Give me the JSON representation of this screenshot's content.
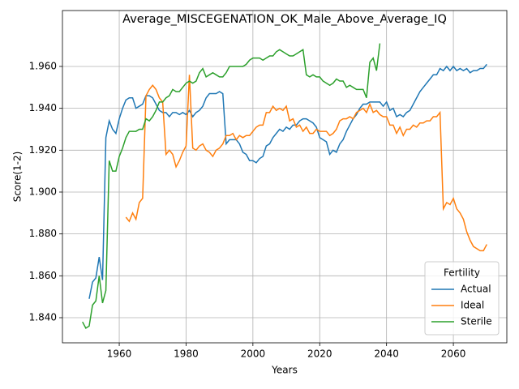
{
  "chart_data": {
    "type": "line",
    "title": "Average_MISCEGENATION_OK_Male_Above_Average_IQ",
    "x_label": "Years",
    "y_label": "Score(1-2)",
    "legend_title": "Fertility",
    "legend_loc": "lower right",
    "grid": true,
    "xlim": [
      1943,
      2076
    ],
    "ylim": [
      1.828,
      1.9867
    ],
    "xticks": [
      1960,
      1980,
      2000,
      2020,
      2040,
      2060
    ],
    "yticks": [
      {
        "value": 1.84,
        "label": "1.840"
      },
      {
        "value": 1.86,
        "label": "1.860"
      },
      {
        "value": 1.88,
        "label": "1.880"
      },
      {
        "value": 1.9,
        "label": "1.900"
      },
      {
        "value": 1.92,
        "label": "1.920"
      },
      {
        "value": 1.94,
        "label": "1.940"
      },
      {
        "value": 1.96,
        "label": "1.960"
      }
    ],
    "x": [
      1949,
      1950,
      1951,
      1952,
      1953,
      1954,
      1955,
      1956,
      1957,
      1958,
      1959,
      1960,
      1961,
      1962,
      1963,
      1964,
      1965,
      1966,
      1967,
      1968,
      1969,
      1970,
      1971,
      1972,
      1973,
      1974,
      1975,
      1976,
      1977,
      1978,
      1979,
      1980,
      1981,
      1982,
      1983,
      1984,
      1985,
      1986,
      1987,
      1988,
      1989,
      1990,
      1991,
      1992,
      1993,
      1994,
      1995,
      1996,
      1997,
      1998,
      1999,
      2000,
      2001,
      2002,
      2003,
      2004,
      2005,
      2006,
      2007,
      2008,
      2009,
      2010,
      2011,
      2012,
      2013,
      2014,
      2015,
      2016,
      2017,
      2018,
      2019,
      2020,
      2021,
      2022,
      2023,
      2024,
      2025,
      2026,
      2027,
      2028,
      2029,
      2030,
      2031,
      2032,
      2033,
      2034,
      2035,
      2036,
      2037,
      2038,
      2039,
      2040,
      2041,
      2042,
      2043,
      2044,
      2045,
      2046,
      2047,
      2048,
      2049,
      2050,
      2051,
      2052,
      2053,
      2054,
      2055,
      2056,
      2057,
      2058,
      2059,
      2060,
      2061,
      2062,
      2063,
      2064,
      2065,
      2066,
      2067,
      2068,
      2069,
      2070
    ],
    "series": [
      {
        "name": "Actual",
        "color": "#1f77b4",
        "values": [
          null,
          null,
          1.849,
          1.857,
          1.859,
          1.869,
          1.858,
          1.926,
          1.934,
          1.93,
          1.928,
          1.935,
          1.94,
          1.944,
          1.945,
          1.945,
          1.94,
          1.941,
          1.942,
          1.946,
          1.946,
          1.945,
          1.942,
          1.939,
          1.938,
          1.938,
          1.936,
          1.938,
          1.938,
          1.937,
          1.938,
          1.937,
          1.939,
          1.936,
          1.938,
          1.939,
          1.941,
          1.945,
          1.947,
          1.947,
          1.947,
          1.948,
          1.947,
          1.923,
          1.925,
          1.925,
          1.925,
          1.923,
          1.919,
          1.918,
          1.915,
          1.915,
          1.914,
          1.916,
          1.917,
          1.922,
          1.923,
          1.926,
          1.928,
          1.93,
          1.929,
          1.931,
          1.93,
          1.932,
          1.932,
          1.934,
          1.935,
          1.935,
          1.934,
          1.933,
          1.931,
          1.926,
          1.925,
          1.924,
          1.918,
          1.92,
          1.919,
          1.923,
          1.925,
          1.929,
          1.932,
          1.935,
          1.937,
          1.94,
          1.942,
          1.942,
          1.943,
          1.943,
          1.943,
          1.943,
          1.941,
          1.943,
          1.939,
          1.94,
          1.936,
          1.937,
          1.936,
          1.938,
          1.939,
          1.942,
          1.945,
          1.948,
          1.95,
          1.952,
          1.954,
          1.956,
          1.956,
          1.959,
          1.958,
          1.96,
          1.958,
          1.96,
          1.958,
          1.959,
          1.958,
          1.959,
          1.957,
          1.958,
          1.958,
          1.959,
          1.959,
          1.961
        ]
      },
      {
        "name": "Ideal",
        "color": "#ff7f0e",
        "values": [
          null,
          null,
          null,
          null,
          null,
          null,
          null,
          null,
          null,
          null,
          null,
          null,
          null,
          1.888,
          1.886,
          1.89,
          1.887,
          1.895,
          1.897,
          1.946,
          1.949,
          1.951,
          1.949,
          1.945,
          1.943,
          1.918,
          1.92,
          1.918,
          1.912,
          1.915,
          1.919,
          1.922,
          1.956,
          1.921,
          1.92,
          1.922,
          1.923,
          1.92,
          1.919,
          1.917,
          1.92,
          1.921,
          1.923,
          1.927,
          1.927,
          1.928,
          1.925,
          1.927,
          1.926,
          1.927,
          1.927,
          1.929,
          1.931,
          1.932,
          1.932,
          1.938,
          1.938,
          1.941,
          1.939,
          1.94,
          1.939,
          1.941,
          1.934,
          1.935,
          1.931,
          1.932,
          1.929,
          1.931,
          1.928,
          1.928,
          1.93,
          1.929,
          1.929,
          1.929,
          1.927,
          1.928,
          1.93,
          1.934,
          1.935,
          1.935,
          1.936,
          1.935,
          1.938,
          1.939,
          1.94,
          1.938,
          1.942,
          1.938,
          1.939,
          1.937,
          1.936,
          1.936,
          1.932,
          1.932,
          1.928,
          1.931,
          1.927,
          1.93,
          1.93,
          1.932,
          1.931,
          1.933,
          1.933,
          1.934,
          1.934,
          1.936,
          1.936,
          1.938,
          1.892,
          1.895,
          1.894,
          1.897,
          1.892,
          1.89,
          1.887,
          1.881,
          1.877,
          1.874,
          1.873,
          1.872,
          1.872,
          1.875
        ]
      },
      {
        "name": "Sterile",
        "color": "#2ca02c",
        "values": [
          1.838,
          1.835,
          1.836,
          1.846,
          1.848,
          1.86,
          1.847,
          1.853,
          1.915,
          1.91,
          1.91,
          1.917,
          1.921,
          1.926,
          1.929,
          1.929,
          1.929,
          1.93,
          1.93,
          1.935,
          1.934,
          1.936,
          1.939,
          1.943,
          1.943,
          1.945,
          1.946,
          1.949,
          1.948,
          1.948,
          1.95,
          1.952,
          1.953,
          1.952,
          1.953,
          1.957,
          1.959,
          1.955,
          1.956,
          1.957,
          1.956,
          1.955,
          1.955,
          1.957,
          1.96,
          1.96,
          1.96,
          1.96,
          1.96,
          1.961,
          1.963,
          1.964,
          1.964,
          1.964,
          1.963,
          1.964,
          1.965,
          1.965,
          1.967,
          1.968,
          1.967,
          1.966,
          1.965,
          1.965,
          1.966,
          1.967,
          1.968,
          1.956,
          1.955,
          1.956,
          1.955,
          1.955,
          1.953,
          1.952,
          1.951,
          1.952,
          1.954,
          1.953,
          1.953,
          1.95,
          1.951,
          1.95,
          1.949,
          1.949,
          1.949,
          1.945,
          1.962,
          1.964,
          1.958,
          1.971,
          null,
          null,
          null,
          null,
          null,
          null,
          null,
          null,
          null,
          null,
          null,
          null,
          null,
          null,
          null,
          null,
          null,
          null,
          null,
          null,
          null,
          null,
          null,
          null,
          null,
          null,
          null,
          null,
          null,
          null,
          null,
          null
        ]
      }
    ]
  }
}
